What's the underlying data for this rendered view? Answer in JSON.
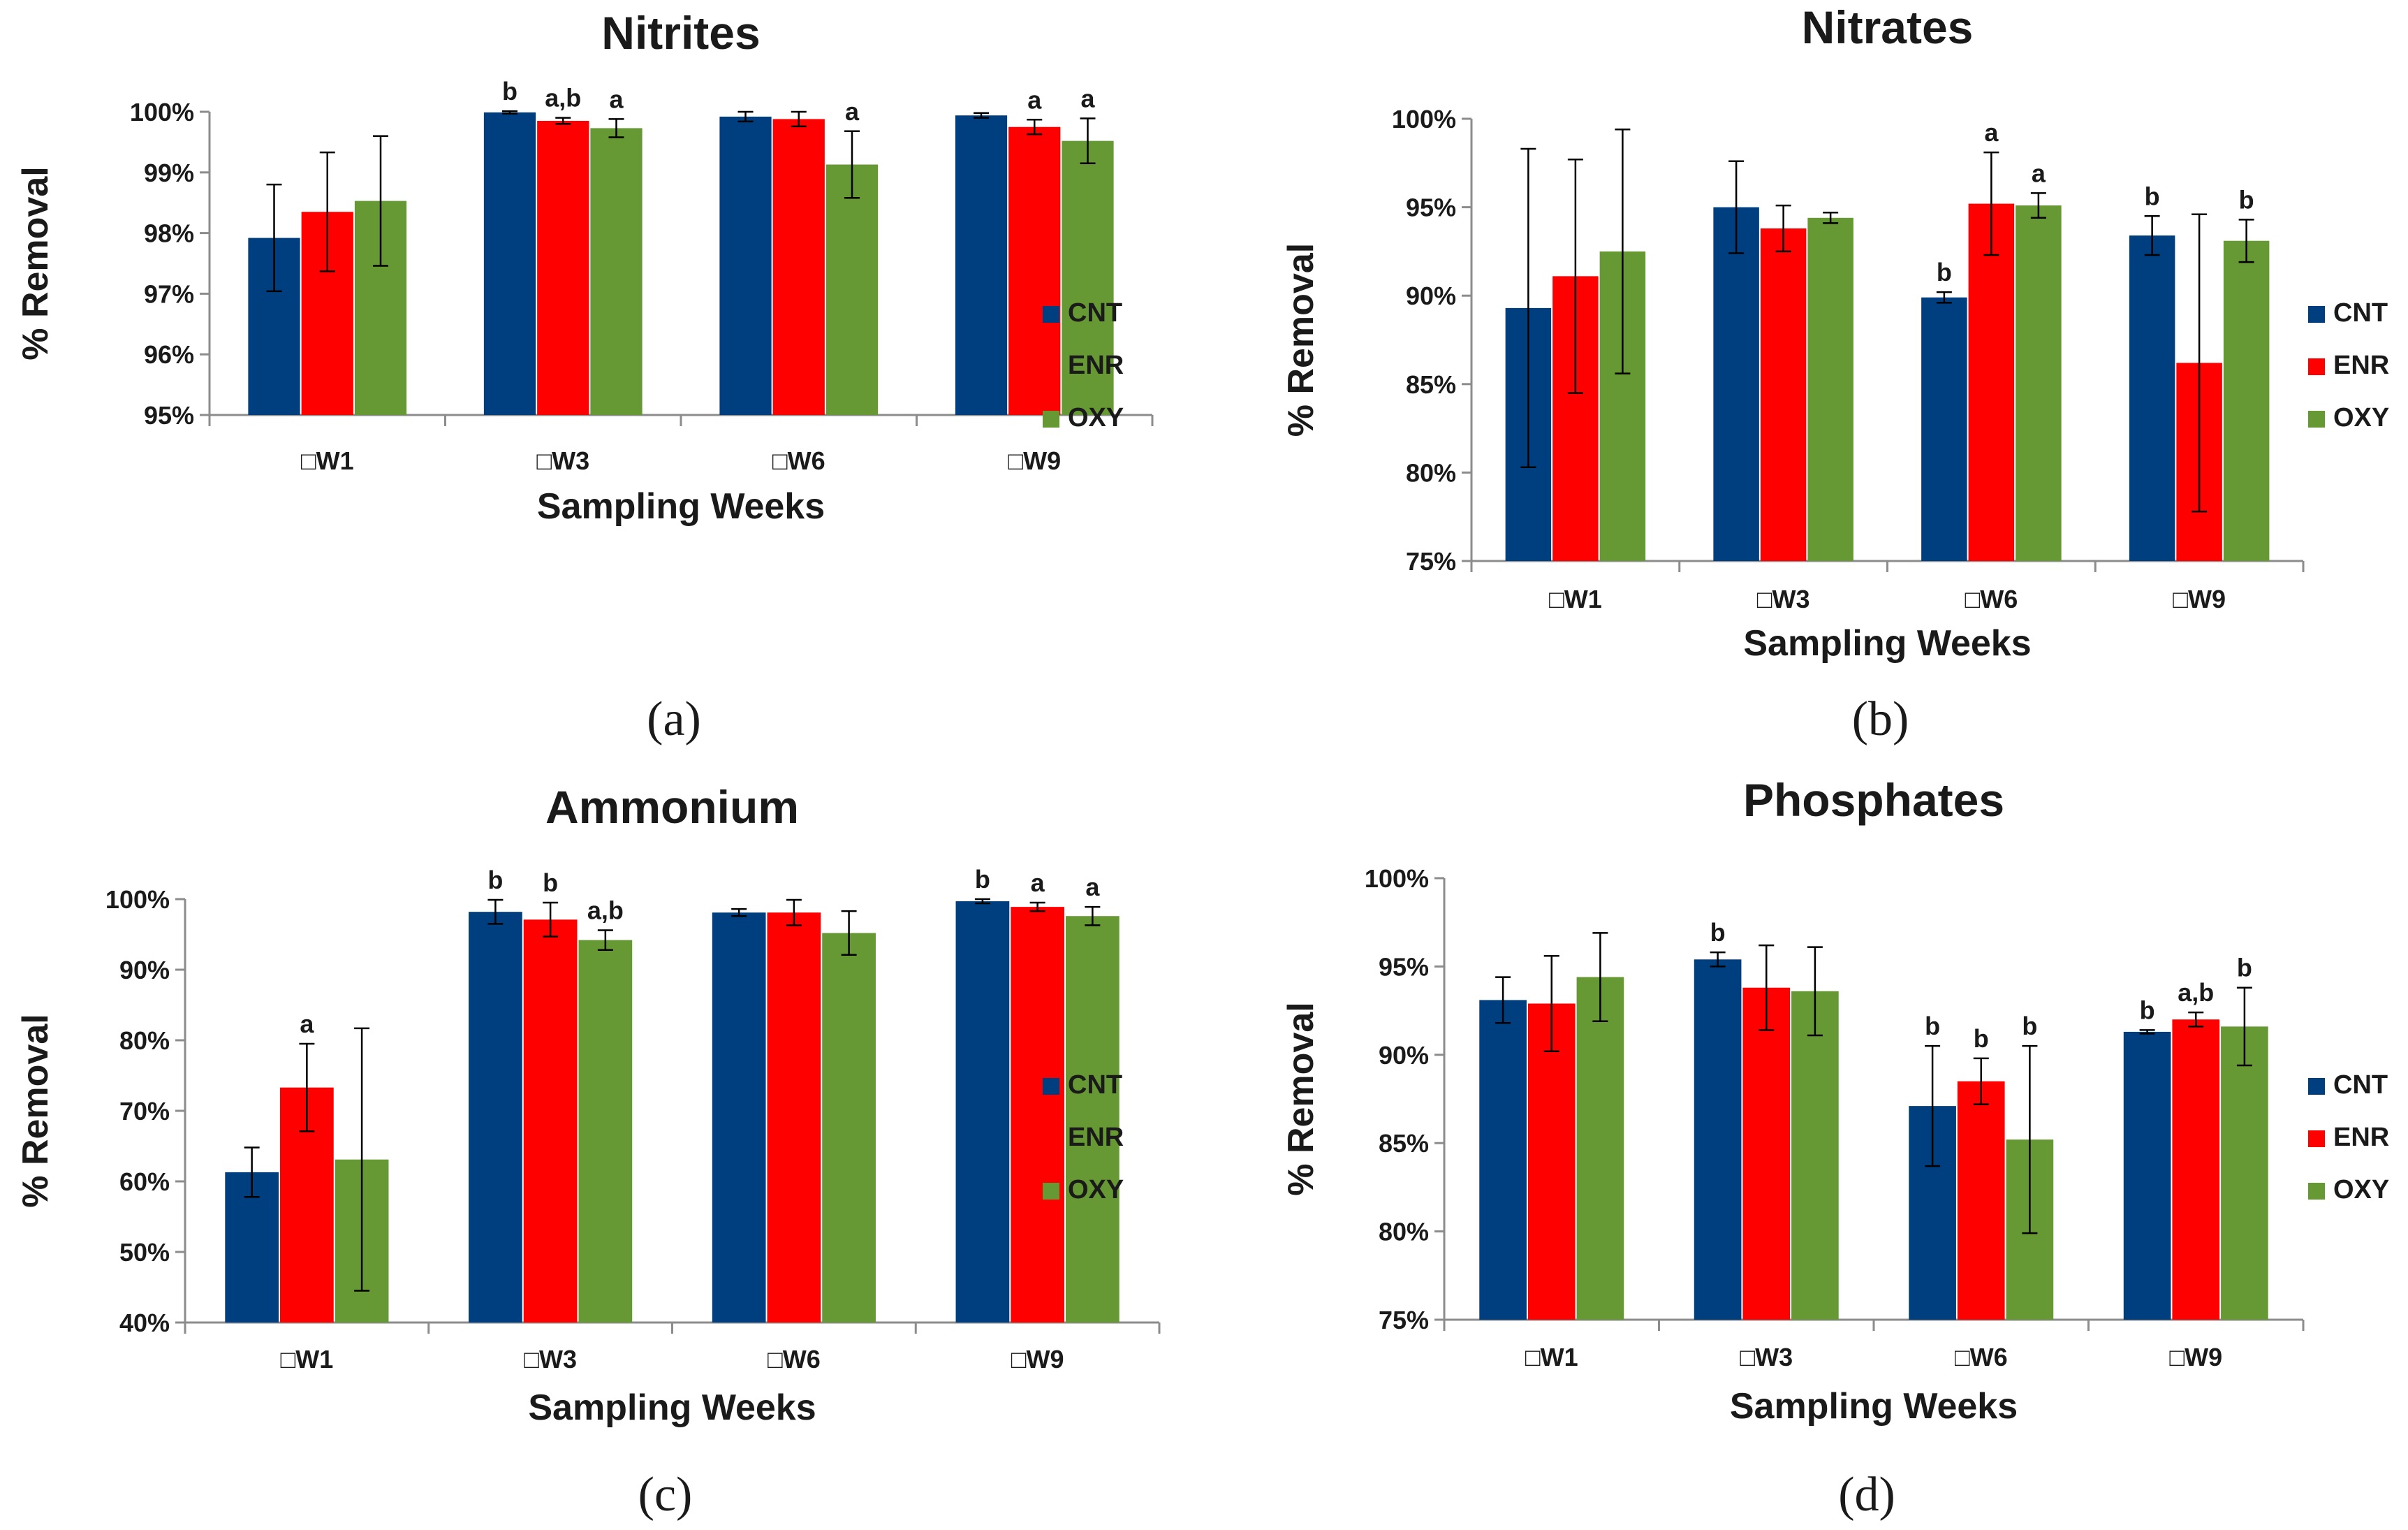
{
  "colors": {
    "CNT": "#003f7f",
    "ENR": "#ff0000",
    "OXY": "#669933",
    "axis": "#8c8c8c",
    "text": "#1a1a1a"
  },
  "chart_data": [
    {
      "type": "bar",
      "panel": "(a)",
      "title": "Nitrites",
      "xlabel": "Sampling Weeks",
      "ylabel": "% Removal",
      "categories": [
        "□W1",
        "□W3",
        "□W6",
        "□W9"
      ],
      "ylim": [
        95,
        100
      ],
      "yticks": [
        95,
        96,
        97,
        98,
        99,
        100
      ],
      "ytick_labels": [
        "95%",
        "96%",
        "97%",
        "98%",
        "99%",
        "100%"
      ],
      "legend": [
        "CNT",
        "ENR",
        "OXY"
      ],
      "legend_position": "right",
      "series": [
        {
          "name": "CNT",
          "values": [
            97.92,
            99.99,
            99.92,
            99.94
          ],
          "errors": [
            0.88,
            0.02,
            0.08,
            0.04
          ],
          "labels": [
            "",
            "b",
            "",
            ""
          ]
        },
        {
          "name": "ENR",
          "values": [
            98.35,
            99.85,
            99.88,
            99.75
          ],
          "errors": [
            0.98,
            0.05,
            0.12,
            0.12
          ],
          "labels": [
            "",
            "a,b",
            "",
            "a"
          ]
        },
        {
          "name": "OXY",
          "values": [
            98.53,
            99.73,
            99.13,
            99.52
          ],
          "errors": [
            1.07,
            0.15,
            0.55,
            0.37
          ],
          "labels": [
            "",
            "a",
            "a",
            "a"
          ]
        }
      ]
    },
    {
      "type": "bar",
      "panel": "(b)",
      "title": "Nitrates",
      "xlabel": "Sampling Weeks",
      "ylabel": "% Removal",
      "categories": [
        "□W1",
        "□W3",
        "□W6",
        "□W9"
      ],
      "ylim": [
        75,
        100
      ],
      "yticks": [
        75,
        80,
        85,
        90,
        95,
        100
      ],
      "ytick_labels": [
        "75%",
        "80%",
        "85%",
        "90%",
        "95%",
        "100%"
      ],
      "legend": [
        "CNT",
        "ENR",
        "OXY"
      ],
      "legend_position": "right",
      "series": [
        {
          "name": "CNT",
          "values": [
            89.3,
            95.0,
            89.9,
            93.4
          ],
          "errors": [
            9.0,
            2.6,
            0.3,
            1.1
          ],
          "labels": [
            "",
            "",
            "b",
            "b"
          ]
        },
        {
          "name": "ENR",
          "values": [
            91.1,
            93.8,
            95.2,
            86.2
          ],
          "errors": [
            6.6,
            1.3,
            2.9,
            8.4
          ],
          "labels": [
            "",
            "",
            "a",
            ""
          ]
        },
        {
          "name": "OXY",
          "values": [
            92.5,
            94.4,
            95.1,
            93.1
          ],
          "errors": [
            6.9,
            0.3,
            0.7,
            1.2
          ],
          "labels": [
            "",
            "",
            "a",
            "b"
          ]
        }
      ]
    },
    {
      "type": "bar",
      "panel": "(c)",
      "title": "Ammonium",
      "xlabel": "Sampling Weeks",
      "ylabel": "% Removal",
      "categories": [
        "□W1",
        "□W3",
        "□W6",
        "□W9"
      ],
      "ylim": [
        40,
        100
      ],
      "yticks": [
        40,
        50,
        60,
        70,
        80,
        90,
        100
      ],
      "ytick_labels": [
        "40%",
        "50%",
        "60%",
        "70%",
        "80%",
        "90%",
        "100%"
      ],
      "legend": [
        "CNT",
        "ENR",
        "OXY"
      ],
      "legend_position": "right",
      "series": [
        {
          "name": "CNT",
          "values": [
            61.3,
            98.2,
            98.1,
            99.7
          ],
          "errors": [
            3.5,
            1.7,
            0.5,
            0.3
          ],
          "labels": [
            "",
            "b",
            "",
            "b"
          ]
        },
        {
          "name": "ENR",
          "values": [
            73.3,
            97.1,
            98.1,
            98.9
          ],
          "errors": [
            6.2,
            2.4,
            1.8,
            0.6
          ],
          "labels": [
            "a",
            "b",
            "",
            "a"
          ]
        },
        {
          "name": "OXY",
          "values": [
            63.1,
            94.2,
            95.2,
            97.6
          ],
          "errors": [
            18.6,
            1.4,
            3.1,
            1.3
          ],
          "labels": [
            "",
            "a,b",
            "",
            "a"
          ]
        }
      ]
    },
    {
      "type": "bar",
      "panel": "(d)",
      "title": "Phosphates",
      "xlabel": "Sampling Weeks",
      "ylabel": "% Removal",
      "categories": [
        "□W1",
        "□W3",
        "□W6",
        "□W9"
      ],
      "ylim": [
        75,
        100
      ],
      "yticks": [
        75,
        80,
        85,
        90,
        95,
        100
      ],
      "ytick_labels": [
        "75%",
        "80%",
        "85%",
        "90%",
        "95%",
        "100%"
      ],
      "legend": [
        "CNT",
        "ENR",
        "OXY"
      ],
      "legend_position": "right",
      "series": [
        {
          "name": "CNT",
          "values": [
            93.1,
            95.4,
            87.1,
            91.3
          ],
          "errors": [
            1.3,
            0.4,
            3.4,
            0.1
          ],
          "labels": [
            "",
            "b",
            "b",
            "b"
          ]
        },
        {
          "name": "ENR",
          "values": [
            92.9,
            93.8,
            88.5,
            92.0
          ],
          "errors": [
            2.7,
            2.4,
            1.3,
            0.4
          ],
          "labels": [
            "",
            "",
            "b",
            "a,b"
          ]
        },
        {
          "name": "OXY",
          "values": [
            94.4,
            93.6,
            85.2,
            91.6
          ],
          "errors": [
            2.5,
            2.5,
            5.3,
            2.2
          ],
          "labels": [
            "",
            "",
            "b",
            "b"
          ]
        }
      ]
    }
  ]
}
